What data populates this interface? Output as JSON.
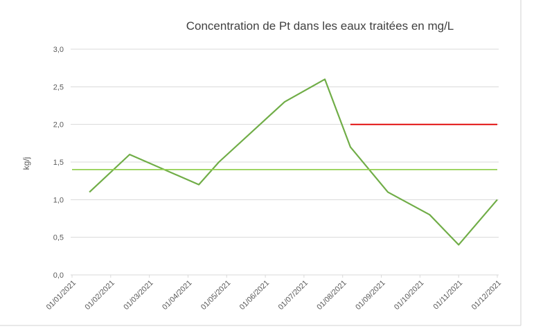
{
  "chart_data": {
    "type": "line",
    "title": "Concentration de Pt dans les eaux traitées en mg/L",
    "y_label": "kg/j",
    "xlim": [
      0,
      11
    ],
    "xticks": [
      {
        "value": 0,
        "label": "01/01/2021"
      },
      {
        "value": 1,
        "label": "01/02/2021"
      },
      {
        "value": 2,
        "label": "01/03/2021"
      },
      {
        "value": 3,
        "label": "01/04/2021"
      },
      {
        "value": 4,
        "label": "01/05/2021"
      },
      {
        "value": 5,
        "label": "01/06/2021"
      },
      {
        "value": 6,
        "label": "01/07/2021"
      },
      {
        "value": 7,
        "label": "01/08/2021"
      },
      {
        "value": 8,
        "label": "01/09/2021"
      },
      {
        "value": 9,
        "label": "01/10/2021"
      },
      {
        "value": 10,
        "label": "01/11/2021"
      },
      {
        "value": 11,
        "label": "01/12/2021"
      }
    ],
    "ylim": [
      0,
      3
    ],
    "yticks": [
      {
        "value": 0,
        "label": "0,0"
      },
      {
        "value": 0.5,
        "label": "0,5"
      },
      {
        "value": 1,
        "label": "1,0"
      },
      {
        "value": 1.5,
        "label": "1,5"
      },
      {
        "value": 2,
        "label": "2,0"
      },
      {
        "value": 2.5,
        "label": "2,5"
      },
      {
        "value": 3,
        "label": "3,0"
      }
    ],
    "grid": true,
    "series": [
      {
        "color": "#70ad47",
        "x": [
          0.45,
          1.49,
          3.28,
          3.8,
          5.5,
          6.54,
          7.2,
          8.17,
          9.25,
          10.0,
          11.0
        ],
        "values": [
          1.1,
          1.6,
          1.2,
          1.5,
          2.3,
          2.6,
          1.7,
          1.1,
          0.8,
          0.4,
          1.0
        ]
      },
      {
        "color": "#92d050",
        "x": [
          0,
          11
        ],
        "values": [
          1.4,
          1.4
        ]
      },
      {
        "color": "#e00000",
        "x": [
          7.2,
          11
        ],
        "values": [
          2.0,
          2.0
        ]
      }
    ]
  }
}
